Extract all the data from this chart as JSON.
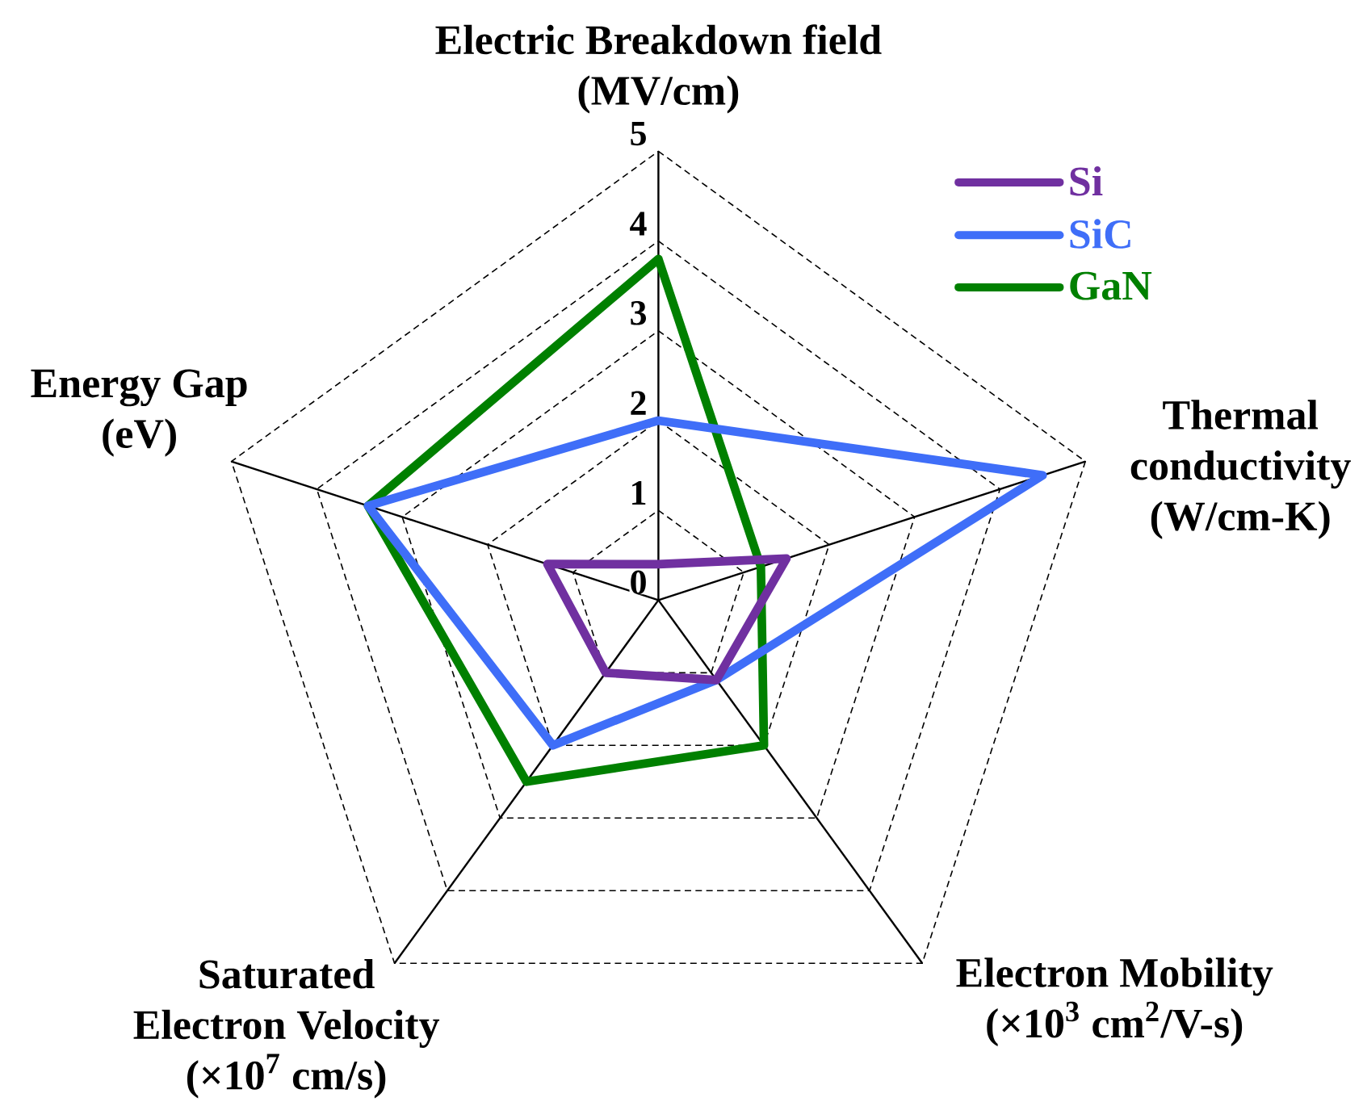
{
  "chart_data": {
    "type": "radar",
    "categories": [
      "Electric Breakdown field (MV/cm)",
      "Thermal conductivity (W/cm-K)",
      "Electron Mobility (×10$^{3}$ cm$^{2}$/V-s)",
      "Saturated Electron Velocity (×10$^{7}$ cm/s)",
      "Energy Gap (eV)"
    ],
    "series": [
      {
        "name": "Si",
        "color": "#7030a0",
        "values": [
          0.4,
          1.5,
          1.1,
          1.0,
          1.3
        ]
      },
      {
        "name": "SiC",
        "color": "#3f6ef8",
        "values": [
          2.0,
          4.5,
          1.1,
          2.0,
          3.4
        ]
      },
      {
        "name": "GaN",
        "color": "#008000",
        "values": [
          3.8,
          1.2,
          2.0,
          2.5,
          3.4
        ]
      }
    ],
    "ylim": [
      0,
      5
    ],
    "yticks": [
      0,
      1,
      2,
      3,
      4,
      5
    ],
    "grid": true,
    "legend": "top right"
  }
}
